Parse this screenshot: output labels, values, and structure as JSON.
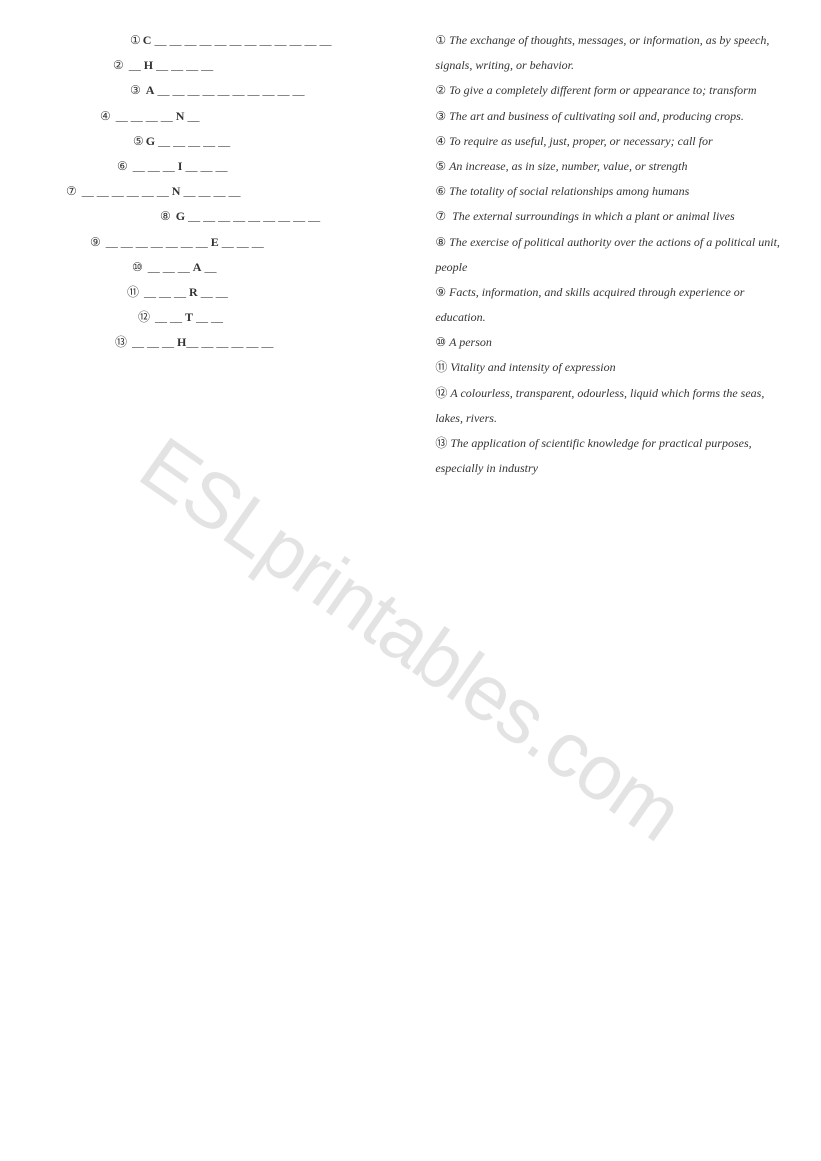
{
  "puzzle": {
    "lines": [
      {
        "indent": 100,
        "num": "①",
        "before": "",
        "letter": "C",
        "after": " __ __ __ __ __ __ __ __ __ __ __ __"
      },
      {
        "indent": 83,
        "num": "②",
        "before": " __ ",
        "letter": "H",
        "after": " __ __ __ __"
      },
      {
        "indent": 100,
        "num": "③",
        "before": " ",
        "letter": "A",
        "after": " __ __ __ __ __ __ __ __ __ __"
      },
      {
        "indent": 70,
        "num": "④",
        "before": " __ __ __ __ ",
        "letter": "N",
        "after": " __"
      },
      {
        "indent": 103,
        "num": "⑤",
        "before": "",
        "letter": "G",
        "after": " __ __ __ __ __"
      },
      {
        "indent": 87,
        "num": "⑥",
        "before": " __ __ __ ",
        "letter": "I",
        "after": " __ __ __"
      },
      {
        "indent": 36,
        "num": "⑦",
        "before": " __ __ __ __ __ __ ",
        "letter": "N",
        "after": " __ __ __ __"
      },
      {
        "indent": 130,
        "num": "⑧",
        "before": " ",
        "letter": "G",
        "after": " __ __ __ __ __ __ __ __ __"
      },
      {
        "indent": 60,
        "num": "⑨",
        "before": " __ __ __ __ __ __ __ ",
        "letter": "E",
        "after": " __ __ __"
      },
      {
        "indent": 102,
        "num": "⑩",
        "before": "  __ __ __ ",
        "letter": "A",
        "after": " __"
      },
      {
        "indent": 97,
        "num": "⑪",
        "before": "  __ __ __ ",
        "letter": "R",
        "after": " __ __"
      },
      {
        "indent": 108,
        "num": "⑫",
        "before": " __ __ ",
        "letter": "T",
        "after": " __ __"
      },
      {
        "indent": 85,
        "num": "⑬",
        "before": " __ __ __ ",
        "letter": "H",
        "after": "__ __ __ __ __ __"
      }
    ]
  },
  "clues": [
    {
      "num": "①",
      "text": "The exchange of thoughts, messages, or information, as by speech, signals, writing, or behavior."
    },
    {
      "num": "②",
      "text": "To give a completely different form or appearance to; transform"
    },
    {
      "num": "③",
      "text": "The art and business of cultivating soil and, producing crops."
    },
    {
      "num": "④",
      "text": "To require as useful, just, proper, or necessary; call for"
    },
    {
      "num": "⑤",
      "text": "An increase, as in size, number, value, or strength"
    },
    {
      "num": "⑥",
      "text": "The totality of social relationships among humans"
    },
    {
      "num": "⑦",
      "text": " The external surroundings in which a plant or animal lives"
    },
    {
      "num": "⑧",
      "text": "The exercise of political authority over the actions of a political unit, people"
    },
    {
      "num": "⑨",
      "text": "Facts, information, and skills acquired through experience or education."
    },
    {
      "num": "⑩",
      "text": "A person"
    },
    {
      "num": "⑪",
      "text": "Vitality and intensity of expression"
    },
    {
      "num": "⑫",
      "text": "A colourless, transparent, odourless, liquid which forms the seas, lakes, rivers."
    },
    {
      "num": "⑬",
      "text": "The application of scientific knowledge for practical purposes, especially in industry"
    }
  ],
  "watermark": "ESLprintables.com",
  "colors": {
    "text": "#333333",
    "background": "#ffffff",
    "watermark": "rgba(0,0,0,0.11)"
  }
}
